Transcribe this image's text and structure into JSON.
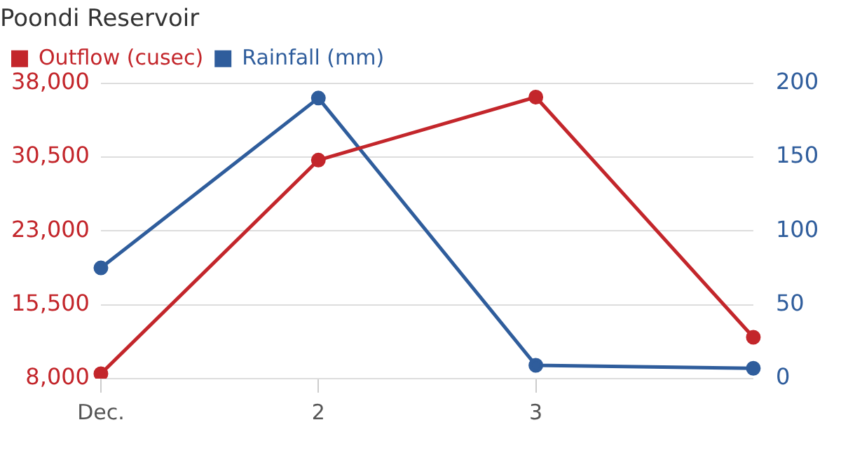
{
  "chart_data": {
    "type": "line",
    "title": "Poondi Reservoir",
    "categories": [
      "Dec.",
      "2",
      "3",
      null
    ],
    "series": [
      {
        "name": "Outflow (cusec)",
        "color": "#c3262b",
        "values": [
          8500,
          30200,
          36600,
          12200
        ]
      },
      {
        "name": "Rainfall (mm)",
        "color": "#2f5d9c",
        "values": [
          75,
          190,
          9,
          7
        ],
        "axis": "y2"
      }
    ],
    "ylim": [
      8000,
      38000
    ],
    "yticks": [
      {
        "value": 8000,
        "label": "8,000"
      },
      {
        "value": 15500,
        "label": "15,500"
      },
      {
        "value": 23000,
        "label": "23,000"
      },
      {
        "value": 30500,
        "label": "30,500"
      },
      {
        "value": 38000,
        "label": "38,000"
      }
    ],
    "y2lim": [
      0,
      200
    ],
    "y2ticks": [
      0,
      50,
      100,
      150,
      200
    ],
    "grid": "y",
    "legend": "top left",
    "marker": "circle",
    "line_style": "solid"
  }
}
